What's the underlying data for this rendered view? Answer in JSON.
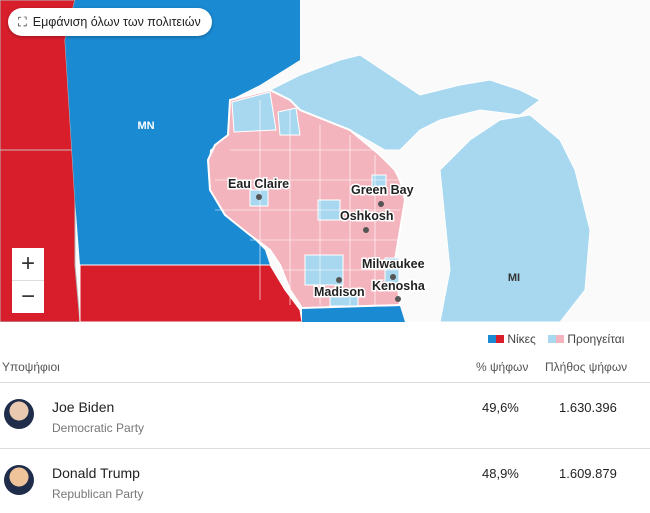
{
  "map": {
    "button": "Εμφάνιση όλων των πολιτειών",
    "zoom_in": "+",
    "zoom_out": "−",
    "state_labels": [
      "MN",
      "MI"
    ],
    "cities": [
      "Eau Claire",
      "Green Bay",
      "Oshkosh",
      "Milwaukee",
      "Madison",
      "Kenosha"
    ]
  },
  "legend": {
    "wins": "Νίκες",
    "leading": "Προηγείται"
  },
  "table": {
    "headers": [
      "Υποψήφιοι",
      "% ψήφων",
      "Πλήθος ψήφων"
    ],
    "rows": [
      {
        "name": "Joe Biden",
        "party": "Democratic Party",
        "percent": "49,6%",
        "votes": "1.630.396"
      },
      {
        "name": "Donald Trump",
        "party": "Republican Party",
        "percent": "48,9%",
        "votes": "1.609.879"
      }
    ]
  }
}
